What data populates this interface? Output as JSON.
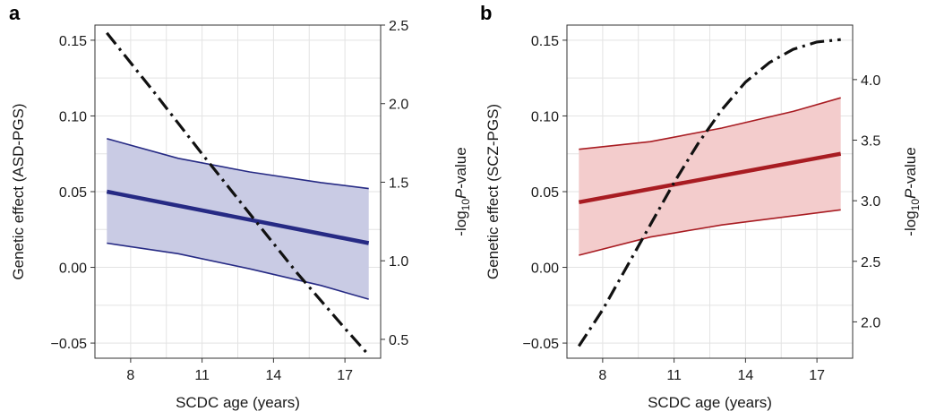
{
  "chart_data": [
    {
      "panel_label": "a",
      "type": "line",
      "xlabel": "SCDC age (years)",
      "ylabel": "Genetic effect (ASD-PGS)",
      "y2label": {
        "prefix": "-log",
        "sub": "10",
        "italic": "P",
        "suffix": "-value"
      },
      "xlim": [
        6.5,
        18.5
      ],
      "ylim": [
        -0.06,
        0.16
      ],
      "y2lim": [
        0.38,
        2.5
      ],
      "xticks": [
        8,
        11,
        14,
        17
      ],
      "yticks": [
        -0.05,
        0.0,
        0.05,
        0.1,
        0.15
      ],
      "ytick_labels": [
        "−0.05",
        "0.00",
        "0.05",
        "0.10",
        "0.15"
      ],
      "y2ticks": [
        0.5,
        1.0,
        1.5,
        2.0,
        2.5
      ],
      "y2tick_labels": [
        "0.5",
        "1.0",
        "1.5",
        "2.0",
        "2.5"
      ],
      "grid": true,
      "colors": {
        "line": "#262a84",
        "band_fill": "#c9cbe4",
        "band_edge": "#262a84",
        "pvalue": "#111111"
      },
      "series": [
        {
          "role": "estimate",
          "x": [
            7,
            18
          ],
          "y": [
            0.05,
            0.016
          ]
        },
        {
          "role": "ci_upper",
          "x": [
            7,
            10,
            13,
            16,
            18
          ],
          "y": [
            0.085,
            0.072,
            0.063,
            0.056,
            0.052
          ]
        },
        {
          "role": "ci_lower",
          "x": [
            7,
            10,
            13,
            16,
            18
          ],
          "y": [
            0.016,
            0.009,
            -0.001,
            -0.012,
            -0.021
          ]
        },
        {
          "role": "pvalue",
          "axis": "right",
          "x": [
            7,
            9,
            11,
            13,
            15,
            17,
            18
          ],
          "y": [
            2.45,
            2.07,
            1.68,
            1.3,
            0.92,
            0.57,
            0.4
          ]
        }
      ]
    },
    {
      "panel_label": "b",
      "type": "line",
      "xlabel": "SCDC age (years)",
      "ylabel": "Genetic effect (SCZ-PGS)",
      "y2label": {
        "prefix": "-log",
        "sub": "10",
        "italic": "P",
        "suffix": "-value"
      },
      "xlim": [
        6.5,
        18.5
      ],
      "ylim": [
        -0.06,
        0.16
      ],
      "y2lim": [
        1.7,
        4.45
      ],
      "xticks": [
        8,
        11,
        14,
        17
      ],
      "yticks": [
        -0.05,
        0.0,
        0.05,
        0.1,
        0.15
      ],
      "ytick_labels": [
        "−0.05",
        "0.00",
        "0.05",
        "0.10",
        "0.15"
      ],
      "y2ticks": [
        2.0,
        2.5,
        3.0,
        3.5,
        4.0
      ],
      "y2tick_labels": [
        "2.0",
        "2.5",
        "3.0",
        "3.5",
        "4.0"
      ],
      "grid": true,
      "colors": {
        "line": "#a81c22",
        "band_fill": "#f3cccc",
        "band_edge": "#a81c22",
        "pvalue": "#111111"
      },
      "series": [
        {
          "role": "estimate",
          "x": [
            7,
            18
          ],
          "y": [
            0.043,
            0.075
          ]
        },
        {
          "role": "ci_upper",
          "x": [
            7,
            10,
            13,
            16,
            18
          ],
          "y": [
            0.078,
            0.083,
            0.092,
            0.103,
            0.112
          ]
        },
        {
          "role": "ci_lower",
          "x": [
            7,
            10,
            13,
            16,
            18
          ],
          "y": [
            0.008,
            0.02,
            0.028,
            0.034,
            0.038
          ]
        },
        {
          "role": "pvalue",
          "axis": "right",
          "x": [
            7,
            8,
            9,
            10,
            11,
            12,
            13,
            14,
            15,
            16,
            17,
            18
          ],
          "y": [
            1.8,
            2.1,
            2.45,
            2.8,
            3.15,
            3.47,
            3.75,
            3.98,
            4.14,
            4.25,
            4.31,
            4.33
          ]
        }
      ]
    }
  ]
}
